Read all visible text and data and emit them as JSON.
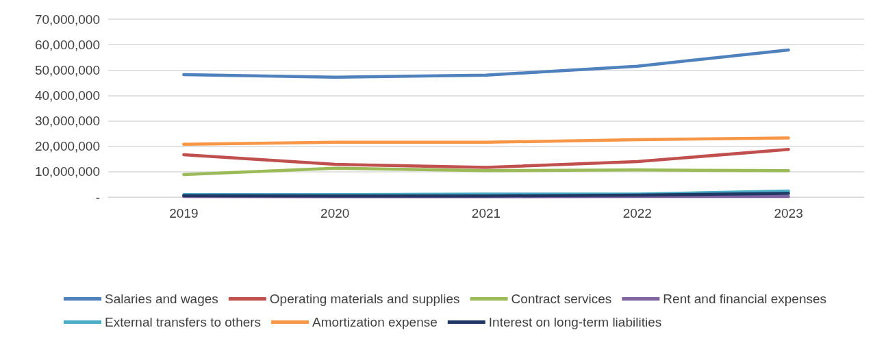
{
  "chart_data": {
    "type": "line",
    "categories": [
      "2019",
      "2020",
      "2021",
      "2022",
      "2023"
    ],
    "series": [
      {
        "name": "Salaries and wages",
        "color": "#4f81bd",
        "values": [
          48200000,
          47200000,
          48000000,
          51500000,
          57900000
        ]
      },
      {
        "name": "Operating materials and supplies",
        "color": "#c0504d",
        "values": [
          16700000,
          12900000,
          11700000,
          14000000,
          18800000
        ]
      },
      {
        "name": "Contract services",
        "color": "#9bbb59",
        "values": [
          8900000,
          11400000,
          10400000,
          10700000,
          10400000
        ]
      },
      {
        "name": "Rent and financial expenses",
        "color": "#8064a2",
        "values": [
          300000,
          200000,
          200000,
          300000,
          300000
        ]
      },
      {
        "name": "External transfers to others",
        "color": "#4bacc6",
        "values": [
          1000000,
          1000000,
          1200000,
          1200000,
          2400000
        ]
      },
      {
        "name": "Amortization expense",
        "color": "#f79646",
        "values": [
          20800000,
          21600000,
          21600000,
          22600000,
          23300000
        ]
      },
      {
        "name": "Interest on long-term liabilities",
        "color": "#1f3864",
        "values": [
          600000,
          500000,
          500000,
          800000,
          1500000
        ]
      }
    ],
    "ylim": [
      0,
      70000000
    ],
    "yticks": [
      {
        "value": 0,
        "label": "-"
      },
      {
        "value": 10000000,
        "label": "10,000,000"
      },
      {
        "value": 20000000,
        "label": "20,000,000"
      },
      {
        "value": 30000000,
        "label": "30,000,000"
      },
      {
        "value": 40000000,
        "label": "40,000,000"
      },
      {
        "value": 50000000,
        "label": "50,000,000"
      },
      {
        "value": 60000000,
        "label": "60,000,000"
      },
      {
        "value": 70000000,
        "label": "70,000,000"
      }
    ],
    "grid": "y",
    "legend": "bottom",
    "marker": "none",
    "line_style": "solid"
  }
}
